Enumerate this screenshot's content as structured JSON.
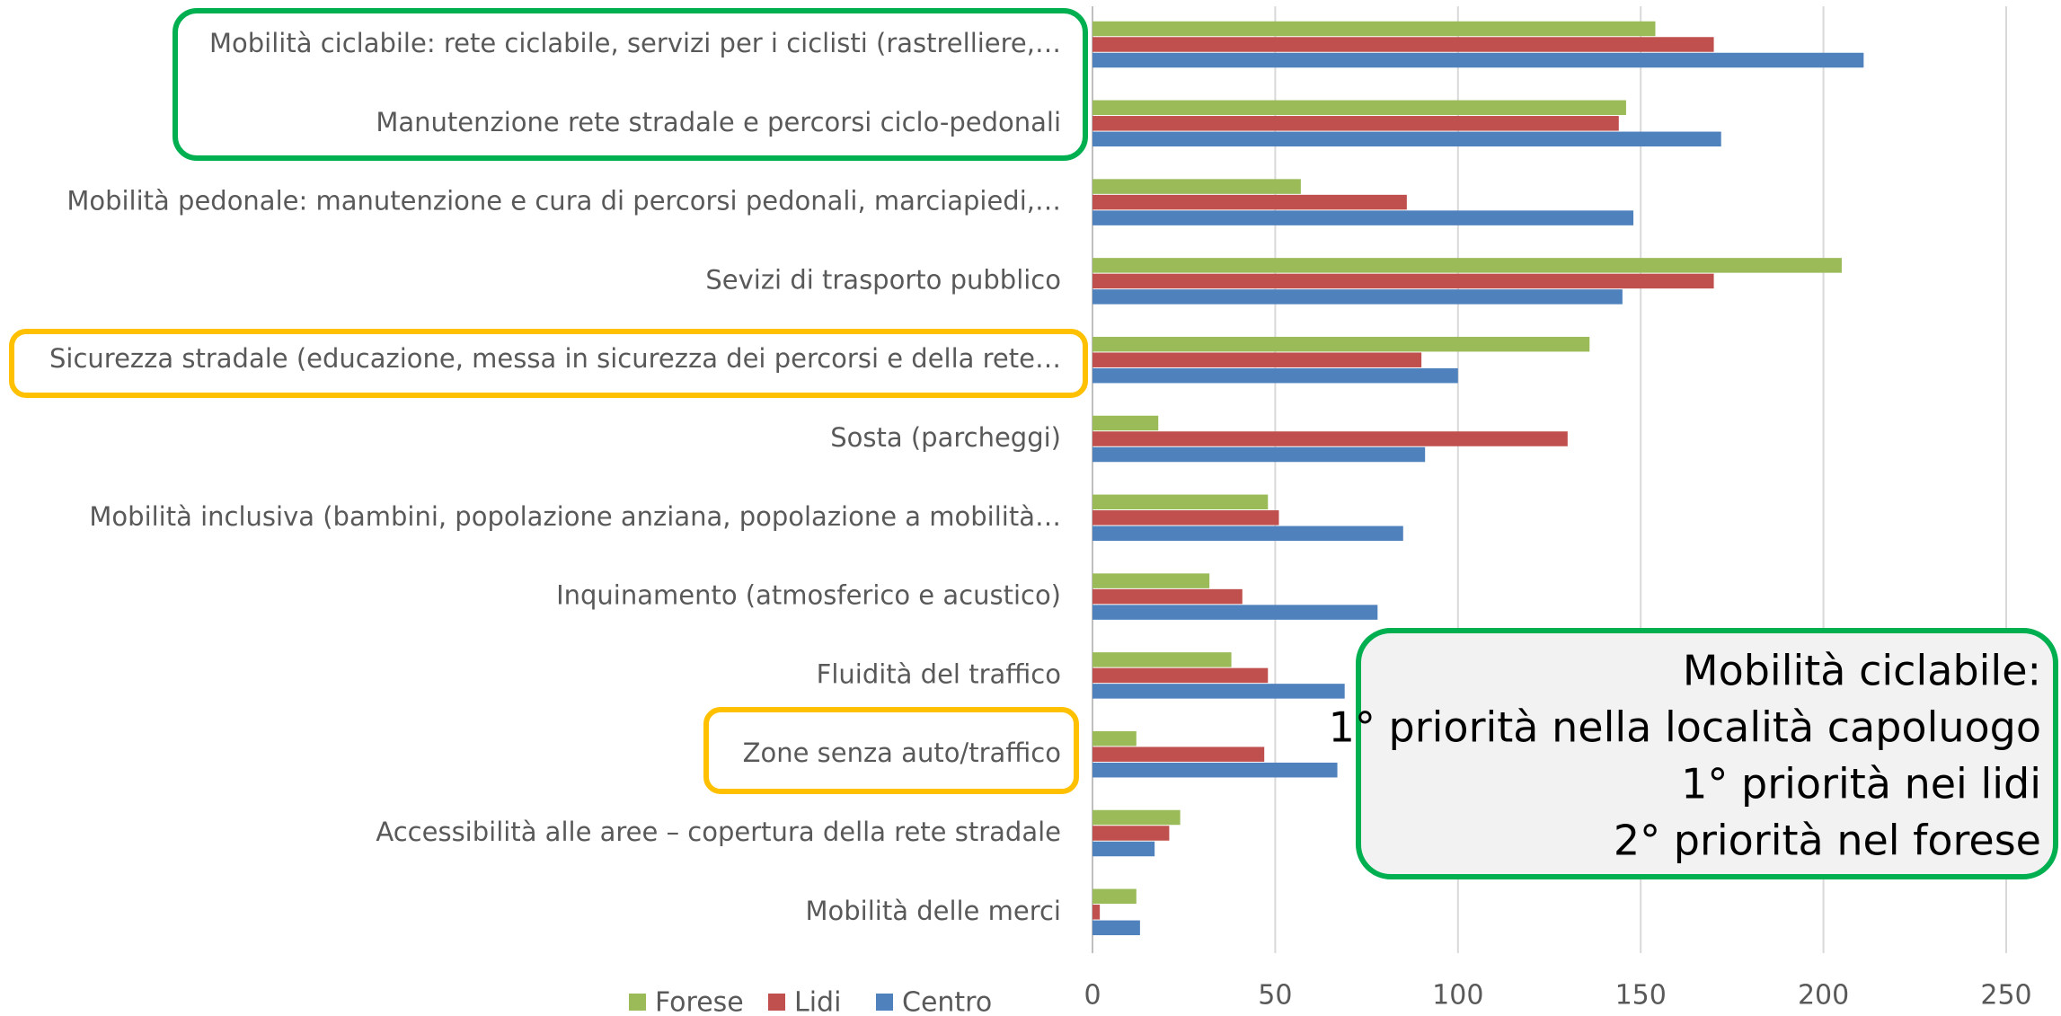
{
  "chart_data": {
    "type": "bar",
    "orientation": "horizontal",
    "categories": [
      "Mobilità ciclabile: rete ciclabile, servizi per i ciclisti (rastrelliere,…",
      "Manutenzione rete stradale e percorsi ciclo-pedonali",
      "Mobilità pedonale: manutenzione e cura di percorsi pedonali, marciapiedi,…",
      "Sevizi di trasporto pubblico",
      "Sicurezza stradale (educazione, messa in sicurezza dei percorsi e della rete…",
      "Sosta (parcheggi)",
      "Mobilità inclusiva (bambini, popolazione anziana, popolazione a mobilità…",
      "Inquinamento (atmosferico e acustico)",
      "Fluidità del traffico",
      "Zone senza auto/traffico",
      "Accessibilità alle aree – copertura della rete stradale",
      "Mobilità delle merci"
    ],
    "series": [
      {
        "name": "Forese",
        "color": "#9bbb59",
        "values": [
          154,
          146,
          57,
          205,
          136,
          18,
          48,
          32,
          38,
          12,
          24,
          12
        ]
      },
      {
        "name": "Lidi",
        "color": "#c0504d",
        "values": [
          170,
          144,
          86,
          170,
          90,
          130,
          51,
          41,
          48,
          47,
          21,
          2
        ]
      },
      {
        "name": "Centro",
        "color": "#4f81bd",
        "values": [
          211,
          172,
          148,
          145,
          100,
          91,
          85,
          78,
          69,
          67,
          17,
          13
        ]
      }
    ],
    "xlim": [
      0,
      250
    ],
    "xticks": [
      0,
      50,
      100,
      150,
      200,
      250
    ],
    "grid": true,
    "legend": "bottom",
    "annotation": [
      "Mobilità ciclabile:",
      "1° priorità nella località capoluogo",
      "1° priorità nei lidi",
      "2° priorità nel forese"
    ]
  }
}
